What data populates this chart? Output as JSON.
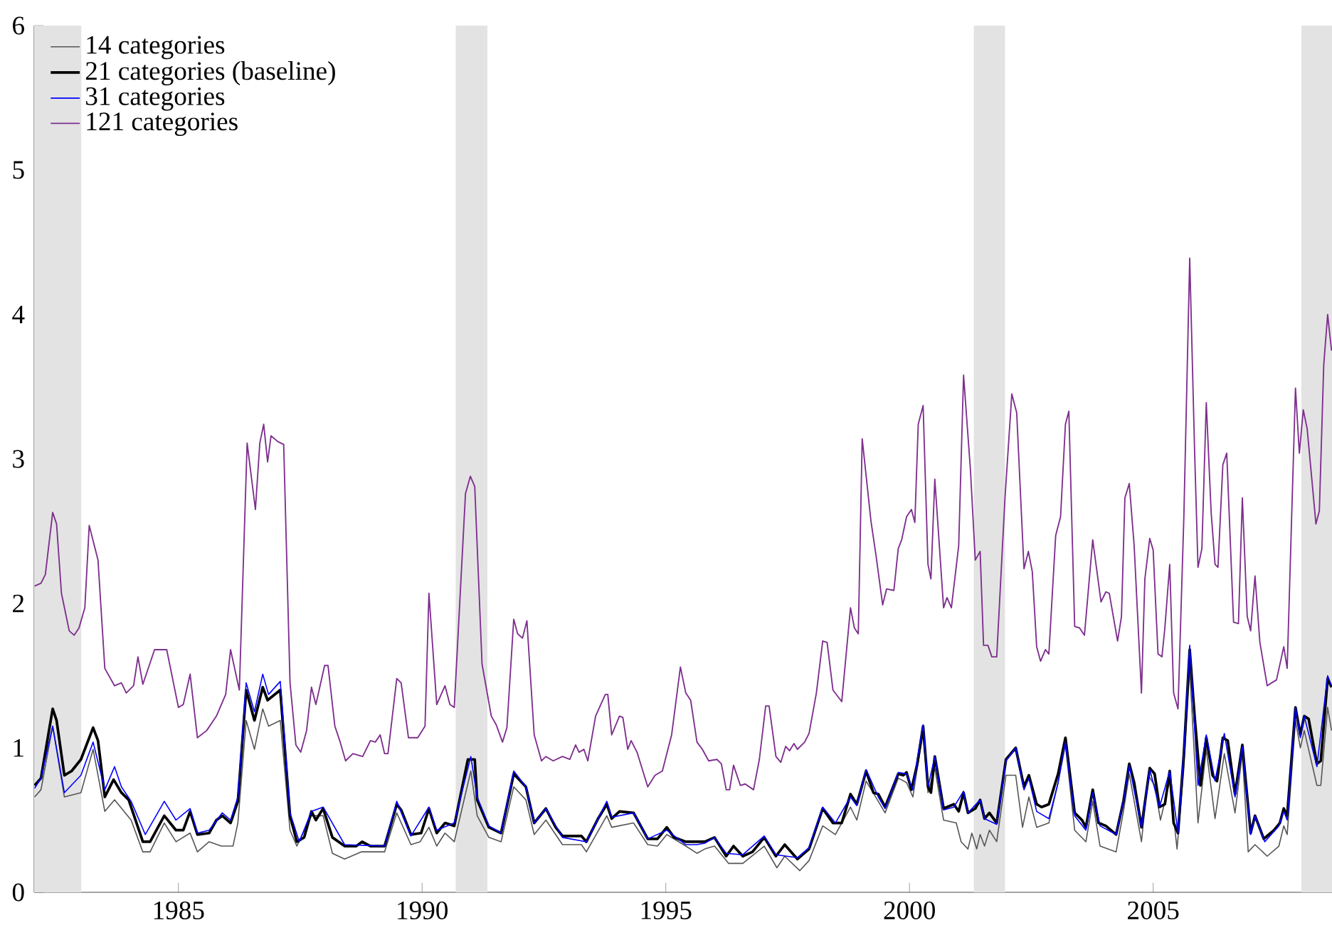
{
  "chart_data": {
    "type": "line",
    "xlim": [
      1982.04,
      2008.67
    ],
    "ylim": [
      0,
      6
    ],
    "xticks": [
      1985,
      1990,
      1995,
      2000,
      2005
    ],
    "yticks": [
      0,
      1,
      2,
      3,
      4,
      5,
      6
    ],
    "grid": false,
    "legend": "top left",
    "marker": "none",
    "line_style": "solid",
    "bands": [
      {
        "axis": "x",
        "from": 1982.04,
        "to": 1983.01,
        "color": "#e3e3e3"
      },
      {
        "axis": "x",
        "from": 1990.69,
        "to": 1991.34,
        "color": "#e3e3e3"
      },
      {
        "axis": "x",
        "from": 2001.32,
        "to": 2001.96,
        "color": "#e3e3e3"
      },
      {
        "axis": "x",
        "from": 2008.04,
        "to": 2008.67,
        "color": "#e3e3e3"
      }
    ],
    "series": [
      {
        "name": "14 categories",
        "color": "#555555",
        "x": [
          1982.05,
          1982.18,
          1982.42,
          1982.66,
          1983.0,
          1983.25,
          1983.49,
          1983.69,
          1984.03,
          1984.27,
          1984.42,
          1984.71,
          1984.95,
          1985.24,
          1985.39,
          1985.63,
          1985.88,
          1986.12,
          1986.22,
          1986.39,
          1986.56,
          1986.73,
          1986.85,
          1987.09,
          1987.29,
          1987.43,
          1987.73,
          1987.97,
          1988.16,
          1988.41,
          1988.75,
          1989.23,
          1989.48,
          1989.77,
          1989.96,
          1990.14,
          1990.3,
          1990.47,
          1990.66,
          1991.0,
          1991.13,
          1991.37,
          1991.62,
          1991.88,
          1992.13,
          1992.3,
          1992.54,
          1992.88,
          1993.27,
          1993.37,
          1993.79,
          1993.89,
          1994.34,
          1994.63,
          1994.83,
          1995.02,
          1995.41,
          1995.64,
          1995.8,
          1996.0,
          1996.29,
          1996.58,
          1997.02,
          1997.28,
          1997.44,
          1997.75,
          1997.94,
          1998.22,
          1998.48,
          1998.79,
          1998.92,
          1999.11,
          1999.36,
          1999.5,
          1999.77,
          1999.94,
          2000.07,
          2000.16,
          2000.28,
          2000.38,
          2000.52,
          2000.7,
          2000.96,
          2001.06,
          2001.2,
          2001.28,
          2001.38,
          2001.45,
          2001.54,
          2001.64,
          2001.79,
          2001.98,
          2002.18,
          2002.32,
          2002.45,
          2002.61,
          2002.86,
          2003.05,
          2003.2,
          2003.39,
          2003.62,
          2003.76,
          2003.91,
          2004.24,
          2004.39,
          2004.51,
          2004.76,
          2004.9,
          2005.03,
          2005.15,
          2005.34,
          2005.49,
          2005.63,
          2005.75,
          2005.92,
          2006.09,
          2006.27,
          2006.46,
          2006.68,
          2006.83,
          2006.95,
          2007.09,
          2007.34,
          2007.58,
          2007.68,
          2007.75,
          2007.92,
          2008.02,
          2008.1,
          2008.36,
          2008.44,
          2008.58,
          2008.66
        ],
        "values": [
          0.66,
          0.71,
          1.15,
          0.66,
          0.69,
          0.99,
          0.56,
          0.64,
          0.5,
          0.28,
          0.28,
          0.48,
          0.35,
          0.41,
          0.28,
          0.35,
          0.32,
          0.32,
          0.48,
          1.19,
          0.99,
          1.27,
          1.15,
          1.19,
          0.43,
          0.32,
          0.53,
          0.53,
          0.27,
          0.23,
          0.28,
          0.28,
          0.55,
          0.33,
          0.35,
          0.45,
          0.32,
          0.41,
          0.35,
          0.84,
          0.53,
          0.38,
          0.35,
          0.73,
          0.64,
          0.4,
          0.5,
          0.33,
          0.33,
          0.28,
          0.53,
          0.45,
          0.48,
          0.33,
          0.32,
          0.4,
          0.32,
          0.27,
          0.3,
          0.32,
          0.2,
          0.2,
          0.32,
          0.17,
          0.25,
          0.15,
          0.22,
          0.46,
          0.4,
          0.59,
          0.5,
          0.77,
          0.63,
          0.55,
          0.79,
          0.76,
          0.66,
          0.86,
          1.1,
          0.69,
          0.86,
          0.5,
          0.48,
          0.35,
          0.3,
          0.41,
          0.3,
          0.4,
          0.32,
          0.43,
          0.35,
          0.81,
          0.81,
          0.45,
          0.66,
          0.45,
          0.48,
          0.76,
          1.02,
          0.43,
          0.35,
          0.63,
          0.32,
          0.28,
          0.56,
          0.82,
          0.35,
          0.81,
          0.74,
          0.5,
          0.77,
          0.3,
          0.86,
          1.55,
          0.48,
          0.99,
          0.51,
          0.96,
          0.55,
          0.96,
          0.28,
          0.33,
          0.25,
          0.32,
          0.46,
          0.4,
          1.19,
          1.0,
          1.12,
          0.74,
          0.74,
          1.28,
          1.12
        ]
      },
      {
        "name": "21 categories (baseline)",
        "color": "#000000",
        "x": [
          1982.05,
          1982.18,
          1982.42,
          1982.5,
          1982.66,
          1982.81,
          1983.0,
          1983.25,
          1983.35,
          1983.49,
          1983.67,
          1983.83,
          1983.98,
          1984.27,
          1984.42,
          1984.71,
          1984.95,
          1985.1,
          1985.24,
          1985.39,
          1985.63,
          1985.78,
          1985.9,
          1986.07,
          1986.22,
          1986.39,
          1986.56,
          1986.73,
          1986.83,
          1987.09,
          1987.29,
          1987.43,
          1987.58,
          1987.73,
          1987.82,
          1987.97,
          1988.16,
          1988.41,
          1988.65,
          1988.77,
          1988.94,
          1989.23,
          1989.48,
          1989.57,
          1989.77,
          1989.98,
          1990.14,
          1990.3,
          1990.47,
          1990.66,
          1990.94,
          1991.08,
          1991.13,
          1991.37,
          1991.62,
          1991.88,
          1992.13,
          1992.3,
          1992.54,
          1992.74,
          1992.88,
          1993.27,
          1993.37,
          1993.61,
          1993.79,
          1993.89,
          1994.05,
          1994.34,
          1994.63,
          1994.83,
          1995.02,
          1995.17,
          1995.41,
          1995.61,
          1995.8,
          1996.0,
          1996.24,
          1996.39,
          1996.58,
          1996.78,
          1997.02,
          1997.26,
          1997.44,
          1997.7,
          1997.94,
          1998.22,
          1998.43,
          1998.61,
          1998.79,
          1998.92,
          1999.11,
          1999.26,
          1999.36,
          1999.5,
          1999.77,
          1999.87,
          1999.94,
          2000.04,
          2000.16,
          2000.28,
          2000.38,
          2000.44,
          2000.52,
          2000.7,
          2000.91,
          2001.01,
          2001.11,
          2001.2,
          2001.35,
          2001.45,
          2001.54,
          2001.64,
          2001.79,
          2001.98,
          2002.18,
          2002.35,
          2002.45,
          2002.61,
          2002.71,
          2002.86,
          2003.05,
          2003.2,
          2003.39,
          2003.54,
          2003.62,
          2003.76,
          2003.88,
          2004.03,
          2004.24,
          2004.39,
          2004.51,
          2004.61,
          2004.76,
          2004.93,
          2005.03,
          2005.13,
          2005.24,
          2005.34,
          2005.42,
          2005.51,
          2005.63,
          2005.75,
          2005.85,
          2005.97,
          2006.09,
          2006.22,
          2006.31,
          2006.43,
          2006.53,
          2006.68,
          2006.83,
          2007.0,
          2007.09,
          2007.27,
          2007.48,
          2007.6,
          2007.68,
          2007.75,
          2007.92,
          2008.02,
          2008.1,
          2008.19,
          2008.36,
          2008.44,
          2008.58,
          2008.66
        ],
        "values": [
          0.74,
          0.79,
          1.27,
          1.19,
          0.81,
          0.84,
          0.92,
          1.14,
          1.05,
          0.66,
          0.78,
          0.69,
          0.64,
          0.35,
          0.35,
          0.53,
          0.43,
          0.43,
          0.56,
          0.4,
          0.41,
          0.5,
          0.53,
          0.48,
          0.63,
          1.4,
          1.19,
          1.42,
          1.33,
          1.4,
          0.53,
          0.35,
          0.38,
          0.56,
          0.5,
          0.58,
          0.38,
          0.32,
          0.32,
          0.35,
          0.32,
          0.32,
          0.61,
          0.57,
          0.4,
          0.41,
          0.58,
          0.41,
          0.48,
          0.46,
          0.92,
          0.92,
          0.64,
          0.45,
          0.41,
          0.82,
          0.73,
          0.48,
          0.58,
          0.45,
          0.39,
          0.39,
          0.35,
          0.51,
          0.61,
          0.51,
          0.56,
          0.55,
          0.37,
          0.37,
          0.45,
          0.38,
          0.35,
          0.35,
          0.35,
          0.38,
          0.25,
          0.32,
          0.25,
          0.28,
          0.38,
          0.25,
          0.33,
          0.23,
          0.3,
          0.58,
          0.48,
          0.48,
          0.68,
          0.61,
          0.84,
          0.69,
          0.68,
          0.59,
          0.82,
          0.81,
          0.83,
          0.71,
          0.89,
          1.15,
          0.73,
          0.69,
          0.94,
          0.58,
          0.61,
          0.56,
          0.69,
          0.55,
          0.58,
          0.64,
          0.51,
          0.55,
          0.48,
          0.92,
          1.0,
          0.73,
          0.81,
          0.61,
          0.59,
          0.61,
          0.82,
          1.07,
          0.55,
          0.5,
          0.45,
          0.71,
          0.48,
          0.46,
          0.4,
          0.63,
          0.89,
          0.76,
          0.45,
          0.86,
          0.82,
          0.59,
          0.61,
          0.84,
          0.48,
          0.41,
          0.96,
          1.68,
          1.22,
          0.74,
          1.07,
          0.81,
          0.77,
          1.07,
          1.05,
          0.68,
          1.02,
          0.41,
          0.53,
          0.37,
          0.43,
          0.48,
          0.58,
          0.53,
          1.28,
          1.09,
          1.22,
          1.2,
          0.89,
          0.91,
          1.48,
          1.42
        ]
      },
      {
        "name": "31 categories",
        "color": "#0000ff",
        "x": [
          1982.05,
          1982.18,
          1982.42,
          1982.66,
          1983.0,
          1983.25,
          1983.49,
          1983.69,
          1983.83,
          1984.03,
          1984.32,
          1984.71,
          1984.95,
          1985.24,
          1985.39,
          1985.63,
          1985.9,
          1986.07,
          1986.22,
          1986.39,
          1986.56,
          1986.73,
          1986.85,
          1987.09,
          1987.29,
          1987.48,
          1987.73,
          1987.97,
          1988.41,
          1989.23,
          1989.48,
          1989.77,
          1990.14,
          1990.3,
          1990.66,
          1991.0,
          1991.13,
          1991.37,
          1991.62,
          1991.88,
          1992.13,
          1992.3,
          1992.54,
          1992.88,
          1993.37,
          1993.79,
          1993.89,
          1994.34,
          1994.63,
          1995.02,
          1995.41,
          1995.64,
          1995.8,
          1996.0,
          1996.24,
          1996.58,
          1997.02,
          1997.26,
          1997.7,
          1997.94,
          1998.22,
          1998.48,
          1998.79,
          1998.92,
          1999.11,
          1999.36,
          1999.5,
          1999.77,
          1999.94,
          2000.07,
          2000.16,
          2000.28,
          2000.38,
          2000.52,
          2000.7,
          2000.91,
          2001.11,
          2001.2,
          2001.45,
          2001.54,
          2001.79,
          2001.98,
          2002.18,
          2002.35,
          2002.45,
          2002.61,
          2002.86,
          2003.05,
          2003.2,
          2003.39,
          2003.62,
          2003.76,
          2003.91,
          2004.24,
          2004.39,
          2004.51,
          2004.76,
          2004.93,
          2005.13,
          2005.34,
          2005.51,
          2005.63,
          2005.75,
          2005.92,
          2006.09,
          2006.27,
          2006.46,
          2006.68,
          2006.83,
          2007.0,
          2007.09,
          2007.29,
          2007.58,
          2007.68,
          2007.75,
          2007.92,
          2008.02,
          2008.1,
          2008.36,
          2008.58,
          2008.66
        ],
        "values": [
          0.72,
          0.79,
          1.15,
          0.69,
          0.81,
          1.04,
          0.71,
          0.87,
          0.73,
          0.63,
          0.4,
          0.63,
          0.5,
          0.58,
          0.41,
          0.43,
          0.55,
          0.5,
          0.66,
          1.45,
          1.25,
          1.51,
          1.37,
          1.46,
          0.55,
          0.35,
          0.56,
          0.59,
          0.33,
          0.32,
          0.63,
          0.39,
          0.59,
          0.43,
          0.48,
          0.94,
          0.66,
          0.46,
          0.41,
          0.84,
          0.73,
          0.48,
          0.58,
          0.38,
          0.35,
          0.63,
          0.52,
          0.55,
          0.37,
          0.43,
          0.33,
          0.33,
          0.34,
          0.38,
          0.27,
          0.26,
          0.39,
          0.26,
          0.24,
          0.31,
          0.59,
          0.48,
          0.66,
          0.6,
          0.85,
          0.66,
          0.58,
          0.83,
          0.82,
          0.71,
          0.92,
          1.16,
          0.73,
          0.94,
          0.57,
          0.59,
          0.7,
          0.55,
          0.64,
          0.51,
          0.47,
          0.91,
          1.0,
          0.71,
          0.79,
          0.56,
          0.51,
          0.76,
          1.04,
          0.53,
          0.43,
          0.69,
          0.46,
          0.4,
          0.63,
          0.88,
          0.45,
          0.85,
          0.59,
          0.84,
          0.41,
          0.97,
          1.71,
          0.74,
          1.09,
          0.77,
          1.1,
          0.66,
          1.01,
          0.4,
          0.53,
          0.35,
          0.46,
          0.56,
          0.5,
          1.28,
          1.07,
          1.22,
          0.87,
          1.5,
          1.43
        ]
      },
      {
        "name": "121 categories",
        "color": "#7e2f8e",
        "x": [
          1982.05,
          1982.18,
          1982.27,
          1982.42,
          1982.5,
          1982.6,
          1982.76,
          1982.86,
          1982.96,
          1983.08,
          1983.17,
          1983.35,
          1983.49,
          1983.69,
          1983.83,
          1983.93,
          1984.08,
          1984.17,
          1984.27,
          1984.51,
          1984.76,
          1985.0,
          1985.1,
          1985.24,
          1985.39,
          1985.58,
          1985.78,
          1985.97,
          1986.07,
          1986.25,
          1986.41,
          1986.58,
          1986.67,
          1986.75,
          1986.83,
          1986.9,
          1987.04,
          1987.16,
          1987.29,
          1987.41,
          1987.51,
          1987.63,
          1987.73,
          1987.82,
          1988.0,
          1988.07,
          1988.21,
          1988.31,
          1988.43,
          1988.58,
          1988.78,
          1988.94,
          1989.04,
          1989.14,
          1989.23,
          1989.3,
          1989.48,
          1989.57,
          1989.72,
          1989.91,
          1990.06,
          1990.14,
          1990.3,
          1990.47,
          1990.57,
          1990.66,
          1990.89,
          1990.99,
          1991.08,
          1991.23,
          1991.42,
          1991.52,
          1991.65,
          1991.74,
          1991.88,
          1991.96,
          1992.06,
          1992.15,
          1992.3,
          1992.45,
          1992.54,
          1992.69,
          1992.88,
          1993.03,
          1993.15,
          1993.22,
          1993.32,
          1993.4,
          1993.56,
          1993.76,
          1993.81,
          1993.89,
          1994.05,
          1994.12,
          1994.22,
          1994.29,
          1994.41,
          1994.63,
          1994.78,
          1994.93,
          1995.12,
          1995.3,
          1995.41,
          1995.51,
          1995.64,
          1995.75,
          1995.88,
          1996.05,
          1996.14,
          1996.24,
          1996.31,
          1996.39,
          1996.53,
          1996.63,
          1996.8,
          1996.92,
          1997.05,
          1997.12,
          1997.26,
          1997.36,
          1997.46,
          1997.54,
          1997.63,
          1997.7,
          1997.85,
          1997.94,
          1998.09,
          1998.22,
          1998.31,
          1998.43,
          1998.61,
          1998.79,
          1998.87,
          1998.95,
          1999.03,
          1999.21,
          1999.31,
          1999.45,
          1999.53,
          1999.68,
          1999.77,
          1999.84,
          1999.94,
          2000.04,
          2000.11,
          2000.18,
          2000.28,
          2000.38,
          2000.44,
          2000.52,
          2000.7,
          2000.77,
          2000.86,
          2001.01,
          2001.11,
          2001.25,
          2001.35,
          2001.45,
          2001.52,
          2001.61,
          2001.69,
          2001.79,
          2001.96,
          2002.1,
          2002.2,
          2002.35,
          2002.44,
          2002.52,
          2002.61,
          2002.69,
          2002.79,
          2002.86,
          2003.0,
          2003.1,
          2003.2,
          2003.27,
          2003.39,
          2003.49,
          2003.59,
          2003.76,
          2003.93,
          2004.03,
          2004.1,
          2004.27,
          2004.35,
          2004.42,
          2004.51,
          2004.61,
          2004.76,
          2004.83,
          2004.93,
          2005.0,
          2005.1,
          2005.18,
          2005.24,
          2005.34,
          2005.42,
          2005.51,
          2005.63,
          2005.75,
          2005.85,
          2005.92,
          2006.0,
          2006.09,
          2006.19,
          2006.27,
          2006.33,
          2006.43,
          2006.51,
          2006.65,
          2006.75,
          2006.83,
          2006.93,
          2007.0,
          2007.09,
          2007.19,
          2007.34,
          2007.43,
          2007.53,
          2007.68,
          2007.75,
          2007.92,
          2008.0,
          2008.08,
          2008.16,
          2008.34,
          2008.41,
          2008.5,
          2008.58,
          2008.66
        ],
        "values": [
          2.12,
          2.14,
          2.2,
          2.63,
          2.55,
          2.07,
          1.81,
          1.78,
          1.83,
          1.97,
          2.54,
          2.3,
          1.55,
          1.43,
          1.45,
          1.38,
          1.43,
          1.63,
          1.44,
          1.68,
          1.68,
          1.28,
          1.3,
          1.51,
          1.07,
          1.12,
          1.22,
          1.37,
          1.68,
          1.4,
          3.11,
          2.65,
          3.11,
          3.24,
          2.98,
          3.16,
          3.12,
          3.1,
          1.45,
          1.02,
          0.97,
          1.12,
          1.42,
          1.3,
          1.57,
          1.57,
          1.15,
          1.05,
          0.91,
          0.96,
          0.94,
          1.05,
          1.04,
          1.09,
          0.96,
          0.96,
          1.48,
          1.45,
          1.07,
          1.07,
          1.15,
          2.07,
          1.3,
          1.43,
          1.3,
          1.28,
          2.76,
          2.88,
          2.81,
          1.58,
          1.22,
          1.16,
          1.04,
          1.14,
          1.89,
          1.79,
          1.76,
          1.88,
          1.09,
          0.91,
          0.94,
          0.91,
          0.94,
          0.92,
          1.02,
          0.97,
          0.99,
          0.91,
          1.22,
          1.37,
          1.37,
          1.09,
          1.22,
          1.21,
          0.99,
          1.05,
          0.97,
          0.73,
          0.81,
          0.84,
          1.09,
          1.56,
          1.38,
          1.33,
          1.04,
          0.99,
          0.91,
          0.92,
          0.89,
          0.71,
          0.71,
          0.88,
          0.74,
          0.75,
          0.71,
          0.92,
          1.29,
          1.29,
          0.94,
          0.9,
          1.01,
          0.98,
          1.03,
          0.99,
          1.04,
          1.1,
          1.38,
          1.74,
          1.73,
          1.4,
          1.32,
          1.97,
          1.83,
          1.79,
          3.14,
          2.57,
          2.34,
          1.99,
          2.1,
          2.09,
          2.38,
          2.44,
          2.6,
          2.65,
          2.56,
          3.24,
          3.37,
          2.27,
          2.17,
          2.86,
          1.97,
          2.04,
          1.97,
          2.4,
          3.58,
          2.93,
          2.3,
          2.36,
          1.71,
          1.71,
          1.63,
          1.63,
          2.73,
          3.45,
          3.32,
          2.24,
          2.36,
          2.22,
          1.7,
          1.6,
          1.68,
          1.65,
          2.47,
          2.6,
          3.24,
          3.33,
          1.84,
          1.83,
          1.78,
          2.44,
          2.01,
          2.08,
          2.07,
          1.74,
          1.91,
          2.73,
          2.83,
          2.4,
          1.38,
          2.17,
          2.45,
          2.37,
          1.65,
          1.63,
          1.83,
          2.27,
          1.38,
          1.27,
          2.6,
          4.39,
          3.06,
          2.25,
          2.38,
          3.39,
          2.63,
          2.27,
          2.25,
          2.96,
          3.04,
          1.87,
          1.86,
          2.73,
          1.91,
          1.81,
          2.19,
          1.73,
          1.43,
          1.45,
          1.47,
          1.7,
          1.55,
          3.49,
          3.04,
          3.34,
          3.21,
          2.55,
          2.64,
          3.65,
          4.0,
          3.75
        ]
      }
    ]
  }
}
